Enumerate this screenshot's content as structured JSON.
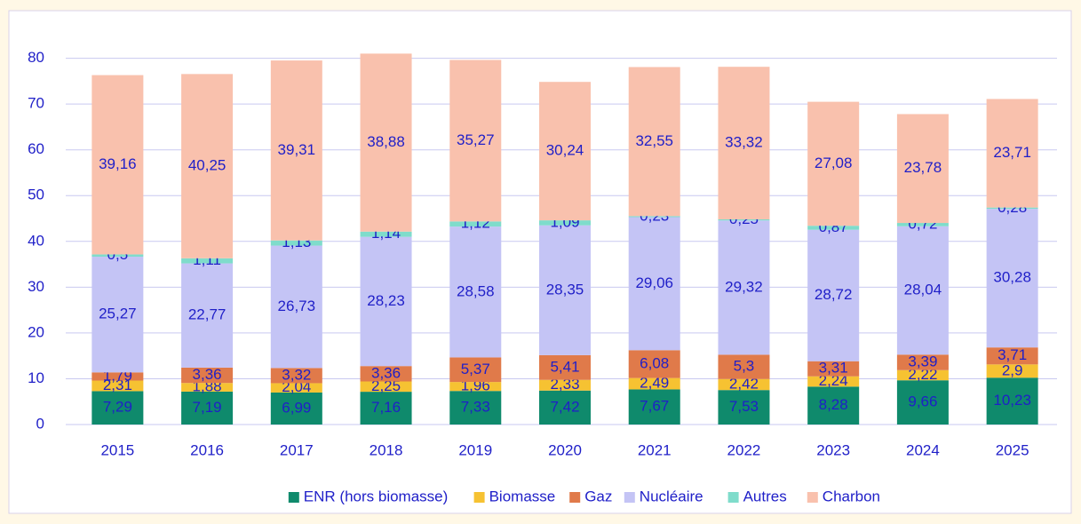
{
  "chart_data": {
    "type": "bar",
    "stacked": true,
    "grid": true,
    "legend": "bottom",
    "categories": [
      "2015",
      "2016",
      "2017",
      "2018",
      "2019",
      "2020",
      "2021",
      "2022",
      "2023",
      "2024",
      "2025"
    ],
    "ylim": [
      0,
      84
    ],
    "yticks": [
      0,
      10,
      20,
      30,
      40,
      50,
      60,
      70,
      80
    ],
    "series": [
      {
        "name": "ENR (hors biomasse)",
        "color": "#0f8a6c",
        "values": [
          7.29,
          7.19,
          6.99,
          7.16,
          7.33,
          7.42,
          7.67,
          7.53,
          8.28,
          9.66,
          10.23
        ],
        "value_labels": [
          "7,29",
          "7,19",
          "6,99",
          "7,16",
          "7,33",
          "7,42",
          "7,67",
          "7,53",
          "8,28",
          "9,66",
          "10,23"
        ]
      },
      {
        "name": "Biomasse",
        "color": "#f6c232",
        "values": [
          2.31,
          1.88,
          2.04,
          2.25,
          1.96,
          2.33,
          2.49,
          2.42,
          2.24,
          2.22,
          2.9
        ],
        "value_labels": [
          "2,31",
          "1,88",
          "2,04",
          "2,25",
          "1,96",
          "2,33",
          "2,49",
          "2,42",
          "2,24",
          "2,22",
          "2,9"
        ]
      },
      {
        "name": "Gaz",
        "color": "#e07a4a",
        "values": [
          1.79,
          3.36,
          3.32,
          3.36,
          5.37,
          5.41,
          6.08,
          5.3,
          3.31,
          3.39,
          3.71
        ],
        "value_labels": [
          "1,79",
          "3,36",
          "3,32",
          "3,36",
          "5,37",
          "5,41",
          "6,08",
          "5,3",
          "3,31",
          "3,39",
          "3,71"
        ]
      },
      {
        "name": "Nucléaire",
        "color": "#c4c4f5",
        "values": [
          25.27,
          22.77,
          26.73,
          28.23,
          28.58,
          28.35,
          29.06,
          29.32,
          28.72,
          28.04,
          30.28
        ],
        "value_labels": [
          "25,27",
          "22,77",
          "26,73",
          "28,23",
          "28,58",
          "28,35",
          "29,06",
          "29,32",
          "28,72",
          "28,04",
          "30,28"
        ]
      },
      {
        "name": "Autres",
        "color": "#7fdccb",
        "values": [
          0.5,
          1.11,
          1.13,
          1.14,
          1.12,
          1.09,
          0.23,
          0.25,
          0.87,
          0.72,
          0.28
        ],
        "value_labels": [
          "0,5",
          "1,11",
          "1,13",
          "1,14",
          "1,12",
          "1,09",
          "0,23",
          "0,25",
          "0,87",
          "0,72",
          "0,28"
        ]
      },
      {
        "name": "Charbon",
        "color": "#f9c1ad",
        "values": [
          39.16,
          40.25,
          39.31,
          38.88,
          35.27,
          30.24,
          32.55,
          33.32,
          27.08,
          23.78,
          23.71
        ],
        "value_labels": [
          "39,16",
          "40,25",
          "39,31",
          "38,88",
          "35,27",
          "30,24",
          "32,55",
          "33,32",
          "27,08",
          "23,78",
          "23,71"
        ]
      }
    ]
  }
}
